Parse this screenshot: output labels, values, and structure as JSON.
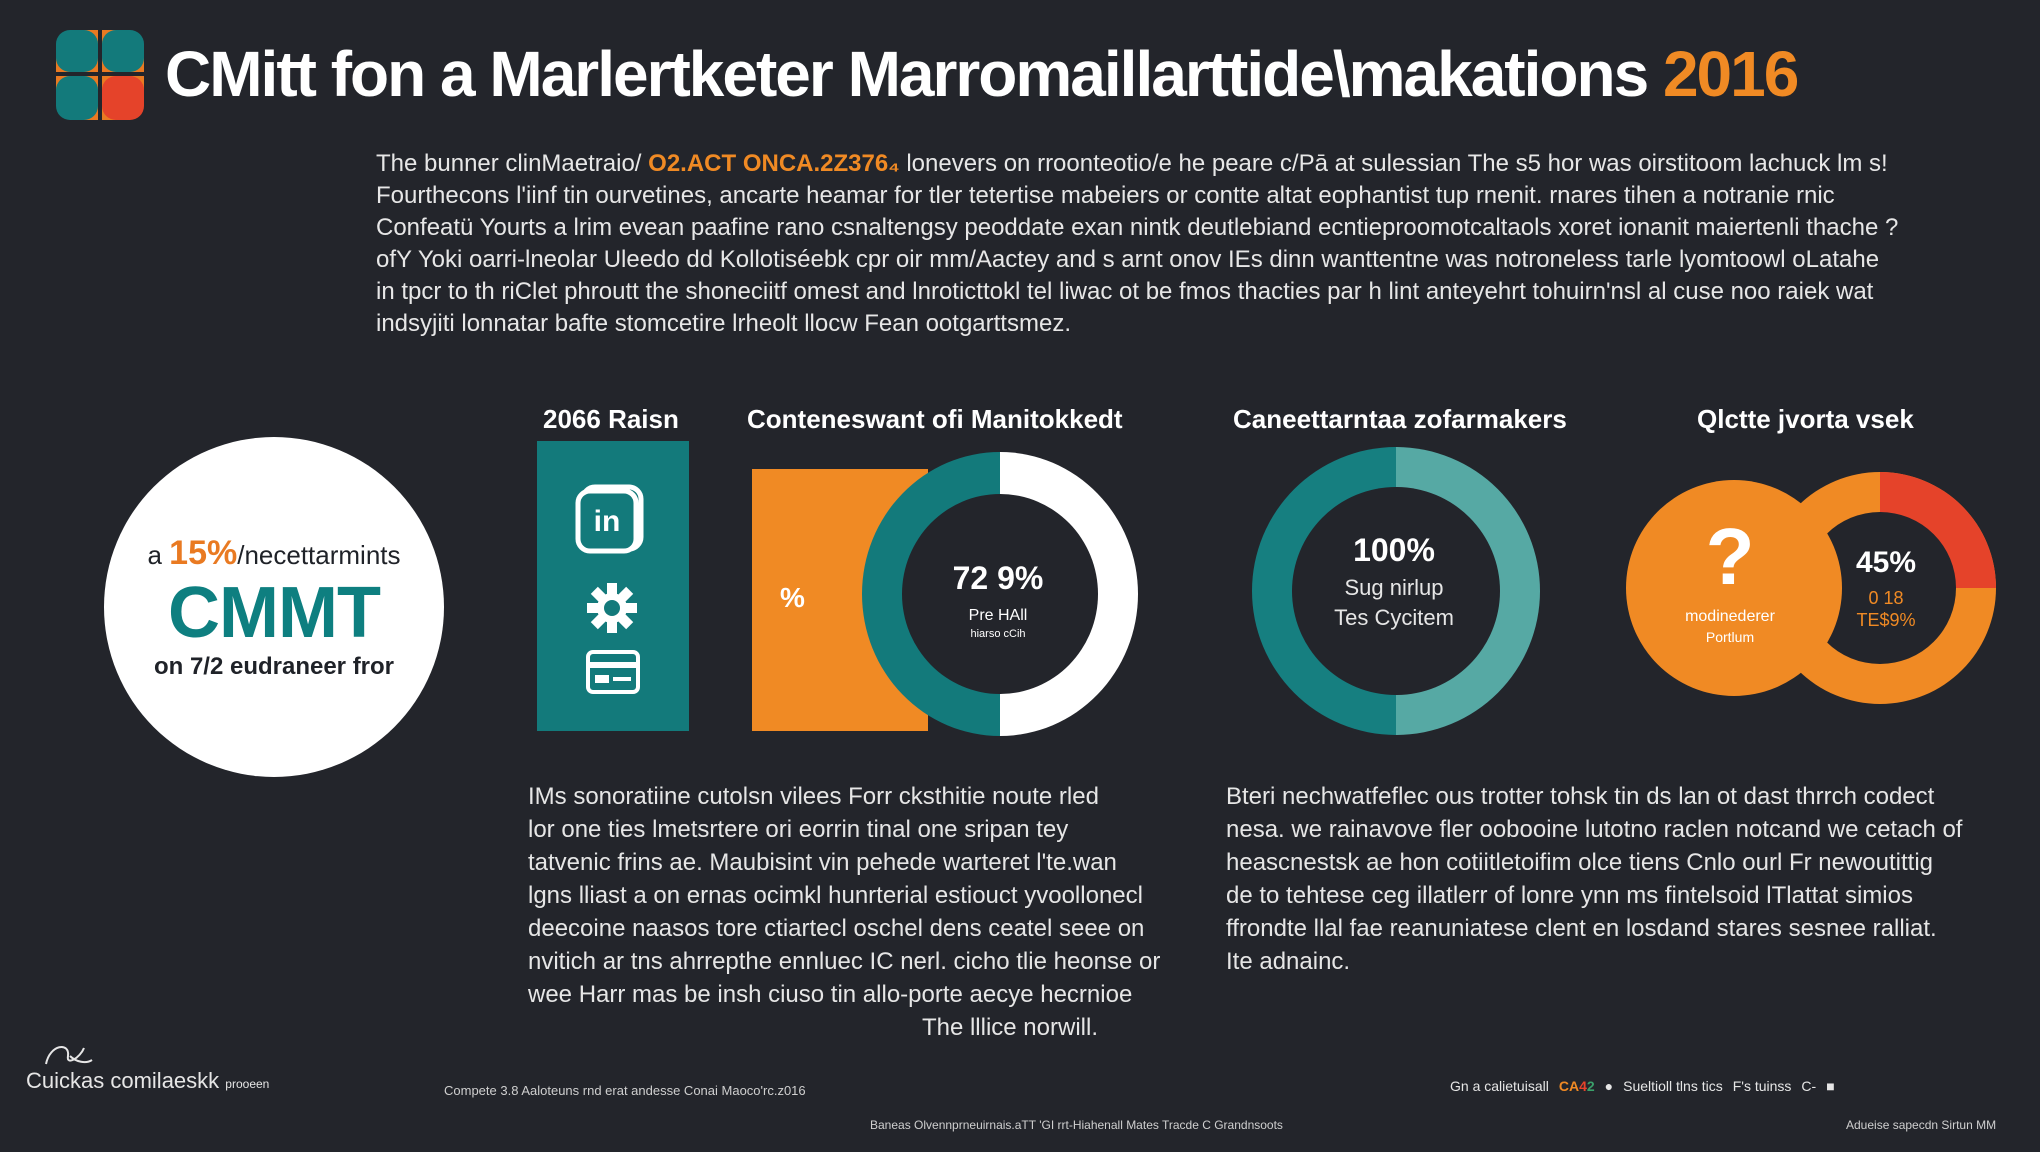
{
  "header": {
    "logo_icon": "grid-logo-icon",
    "title": "CMitt fon a Marlertketer Marromaillarttide\\makations",
    "year": "2016"
  },
  "intro": {
    "line1_a": "The bunner clinMaetraio/",
    "line1_highlight": "O2.ACT ONCA.2Z376₄",
    "line1_b": "lonevers on rroonteotio/e he peare c/Pā at sulessian The s5 hor was oirstitoom lachuck lm s!",
    "line2": "Fourthecons l'iinf tin ourvetines, ancarte heamar for tler tetertise mabeiers or contte altat eophantist tup rnenit. rnares tihen a notranie rnic",
    "line3": "Confeatü Yourts a lrim evean paafine rano csnaltengsy peoddate exan nintk deutlebiand ecntieproomotcaltaols xoret ionanit maiertenli thache ?",
    "line4": "ofY Yoki oarri-lneolar Uleedo dd Kollotiséebk cpr oir mm/Aactey and s arnt onov IEs dinn wanttentne was notroneless tarle lyomtoowl oLatahe",
    "line5": "in tpcr to th riClet phroutt the shoneciitf omest and lnroticttokl tel liwac ot be fmos thacties par h lint anteyehrt tohuirn'nsl al cuse noo raiek wat",
    "line6": "indsyjiti lonnatar bafte stomcetire lrheolt llocw Fean ootgarttsmez."
  },
  "big_circle": {
    "line1_prefix": "a",
    "line1_pct": "15%",
    "line1_suffix": "/necettarmints",
    "big": "CMMT",
    "line3": "on 7/2 eudraneer fror"
  },
  "sections": {
    "s1": "2066 Raisn",
    "s2": "Conteneswant ofi Manitokkedt",
    "s3": "Caneettarntaa zofarmakers",
    "s4": "Qlctte jvorta vsek"
  },
  "panel_icons": [
    "in-badge-icon",
    "gear-icon",
    "card-icon"
  ],
  "panel_icon_text": "in",
  "donut1": {
    "orange_label": "%",
    "value": "72 9%",
    "sub1": "Pre HAll",
    "sub2": "hiarso cCih",
    "colors": {
      "ring": "#137a7b",
      "light": "#ffffff",
      "orange": "#f08a24"
    }
  },
  "donut2": {
    "value": "100%",
    "sub1": "Sug nirlup",
    "sub2": "Tes Cycitem",
    "colors": {
      "left": "#167f80",
      "right": "#56a9a4"
    }
  },
  "donut3": {
    "question": "?",
    "label1": "modinederer",
    "label2": "Portlum",
    "value": "45%",
    "sub1": "0 18",
    "sub2": "TE$9%",
    "colors": {
      "orange": "#f08a24",
      "red": "#e5432a"
    }
  },
  "para_left": {
    "lines": [
      "IMs sonoratiine cutolsn vilees Forr cksthitie noute rled",
      "lor one ties lmetsrtere ori eorrin tinal one sripan tey",
      "tatvenic frins ae. Maubisint vin pehede warteret l'te.wan",
      "lgns lliast a on ernas ocimkl hunrterial estiouct yvoollonecl",
      "deecoine naasos tore ctiartecl oschel dens ceatel seee on",
      "nvitich ar tns ahrrepthe ennluec IC nerl. cicho tlie heonse or",
      "wee Harr mas be insh ciuso tin allo-porte aecye hecrnioe"
    ],
    "last": "The lllice norwill."
  },
  "para_right": {
    "lines": [
      "Bteri nechwatfeflec ous trotter tohsk tin ds lan ot dast thrrch codect",
      "nesa. we rainavove fler oobooine lutotno raclen notcand we cetach of",
      "heascnestsk ae hon cotiitletoifim olce tiens Cnlo ourl Fr newoutittig",
      "de to tehtese ceg illatlerr of lonre ynn ms fintelsoid lTlattat simios",
      "ffrondte llal fae reanuniatese clent en losdand stares sesnee ralliat.",
      "Ite adnainc."
    ]
  },
  "footer": {
    "logo_text": "Cuickas comilaeskk",
    "logo_small": "prooeen",
    "mid": "Compete 3.8 Aaloteuns rnd erat andesse Conai Maoco'rc.z016",
    "bottom": "Baneas Olvennprneuirnais.aTT 'GI rrt-Hiahenall Mates Tracde C Grandnsoots",
    "right_a": "Gn a calietuisall",
    "right_o": "CA",
    "right_r": "4",
    "right_g": "2",
    "right_b": "Sueltioll tlns tics",
    "right_c": "F's tuinss",
    "right_d": "C-",
    "br": "Adueise sapecdn Sirtun MM"
  }
}
